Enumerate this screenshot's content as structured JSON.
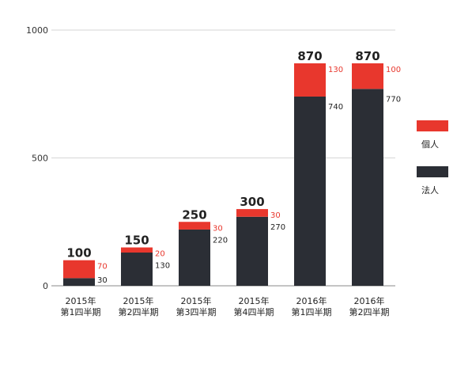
{
  "chart_data": {
    "type": "bar",
    "stacked": true,
    "categories": [
      [
        "2015年",
        "第1四半期"
      ],
      [
        "2015年",
        "第2四半期"
      ],
      [
        "2015年",
        "第3四半期"
      ],
      [
        "2015年",
        "第4四半期"
      ],
      [
        "2016年",
        "第1四半期"
      ],
      [
        "2016年",
        "第2四半期"
      ]
    ],
    "series": [
      {
        "name": "法人",
        "color": "#2b2e35",
        "values": [
          30,
          130,
          220,
          270,
          740,
          770
        ]
      },
      {
        "name": "個人",
        "color": "#e8372d",
        "values": [
          70,
          20,
          30,
          30,
          130,
          100
        ]
      }
    ],
    "totals": [
      100,
      150,
      250,
      300,
      870,
      870
    ],
    "yticks": [
      0,
      500,
      1000
    ],
    "ylim": [
      0,
      1000
    ],
    "grid": true,
    "legend": "right"
  }
}
